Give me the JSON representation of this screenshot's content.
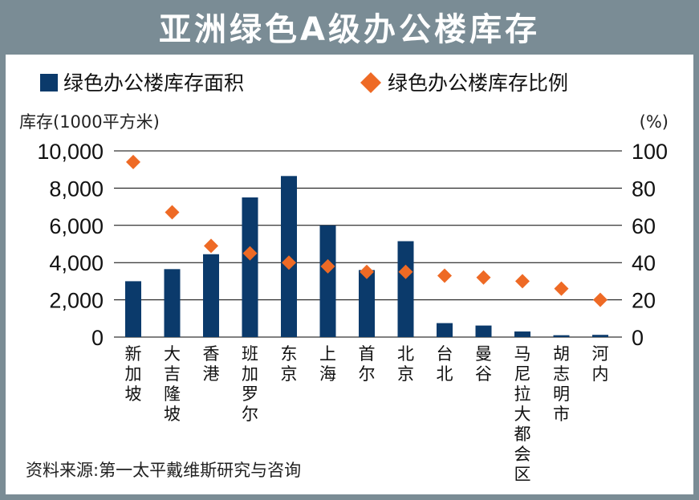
{
  "title": "亚洲绿色A级办公楼库存",
  "colors": {
    "bar": "#0b3a6b",
    "marker": "#ee6a25",
    "frame": "#7a8c95",
    "grid": "#000000"
  },
  "chart_data": {
    "type": "bar",
    "categories": [
      "新加坡",
      "大吉隆坡",
      "香港",
      "班加罗尔",
      "东京",
      "上海",
      "首尔",
      "北京",
      "台北",
      "曼谷",
      "马尼拉大都会区",
      "胡志明市",
      "河内"
    ],
    "series": [
      {
        "name": "绿色办公楼库存面积",
        "type": "bar",
        "axis": "left",
        "values": [
          3000,
          3650,
          4450,
          7500,
          8650,
          6000,
          3600,
          5150,
          750,
          620,
          300,
          100,
          120
        ]
      },
      {
        "name": "绿色办公楼库存比例",
        "type": "scatter",
        "axis": "right",
        "values": [
          94,
          67,
          49,
          45,
          40,
          38,
          35,
          35,
          33,
          32,
          30,
          26,
          20
        ]
      }
    ],
    "ylabel_left": "库存(1000平方米)",
    "ylabel_right": "(%)",
    "ylim_left": [
      0,
      10000
    ],
    "ylim_right": [
      0,
      100
    ],
    "yticks_left": [
      "10,000",
      "8,000",
      "6,000",
      "4,000",
      "2,000",
      "0"
    ],
    "yticks_right": [
      "100",
      "80",
      "60",
      "40",
      "20",
      "0"
    ],
    "grid": true,
    "legend_position": "top"
  },
  "source": "资料来源:第一太平戴维斯研究与咨询"
}
